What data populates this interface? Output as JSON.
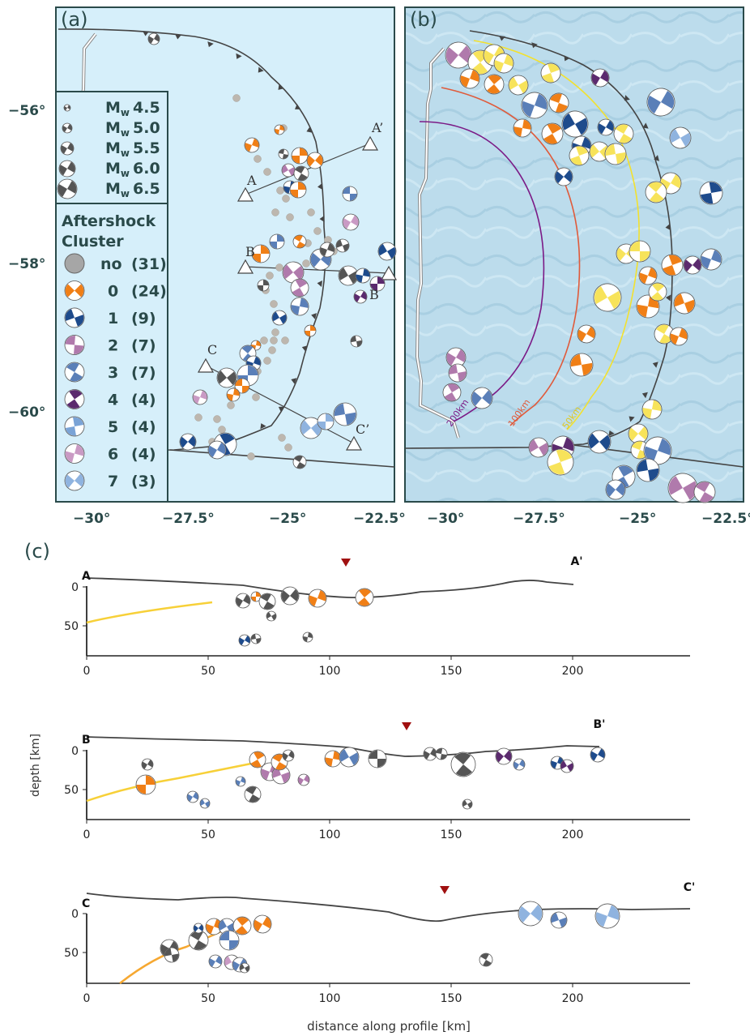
{
  "panels": {
    "a_label": "(a)",
    "b_label": "(b)",
    "c_label": "(c)"
  },
  "map_axes": {
    "lat_ticks": [
      "−56°",
      "−58°",
      "−60°"
    ],
    "lon_ticks_a": [
      "−30°",
      "−27.5°",
      "−25°",
      "−22.5°"
    ],
    "lon_ticks_b": [
      "−30°",
      "−27.5°",
      "−25°",
      "−22.5°"
    ]
  },
  "profile_points": {
    "A": "A",
    "A_end": "A’",
    "B": "B",
    "B_end": "B",
    "C": "C",
    "C_end": "C’"
  },
  "legend": {
    "magnitudes": [
      {
        "label": "M",
        "sub": "w",
        "value": "4.5"
      },
      {
        "label": "M",
        "sub": "w",
        "value": "5.0"
      },
      {
        "label": "M",
        "sub": "w",
        "value": "5.5"
      },
      {
        "label": "M",
        "sub": "w",
        "value": "6.0"
      },
      {
        "label": "M",
        "sub": "w",
        "value": "6.5"
      }
    ],
    "cluster_title_1": "Aftershock",
    "cluster_title_2": "Cluster",
    "clusters": [
      {
        "id": "no",
        "count": "(31)",
        "color": "#9e9e9e"
      },
      {
        "id": "0",
        "count": "(24)",
        "color": "#f07f16"
      },
      {
        "id": "1",
        "count": "(9)",
        "color": "#1e4b8c"
      },
      {
        "id": "2",
        "count": "(7)",
        "color": "#b07aac"
      },
      {
        "id": "3",
        "count": "(7)",
        "color": "#5a7fb8"
      },
      {
        "id": "4",
        "count": "(4)",
        "color": "#5b2a6e"
      },
      {
        "id": "5",
        "count": "(4)",
        "color": "#7aa3d6"
      },
      {
        "id": "6",
        "count": "(4)",
        "color": "#c99ac4"
      },
      {
        "id": "7",
        "count": "(3)",
        "color": "#8fb3df"
      }
    ]
  },
  "contours": {
    "c200": "200km",
    "c100": "100km",
    "c50": "50km"
  },
  "profiles": {
    "A": {
      "start": "A",
      "end": "A'"
    },
    "B": {
      "start": "B",
      "end": "B'"
    },
    "C": {
      "start": "C",
      "end": "C'"
    },
    "y_ticks": [
      "0",
      "50"
    ],
    "x_ticks": [
      "0",
      "50",
      "100",
      "150",
      "200"
    ],
    "ylabel": "depth [km]",
    "xlabel": "distance along profile [km]"
  },
  "colors": {
    "ocean_a": "#d6effa",
    "ocean_b": "#bcdcec",
    "frame": "#2a4a4a",
    "orange": "#f07f16",
    "yellow": "#f7e35a",
    "darkblue": "#1e4b8c",
    "grey": "#555555",
    "trench": "#444444",
    "slab": "#f7c531",
    "triangle": "#a01010"
  }
}
